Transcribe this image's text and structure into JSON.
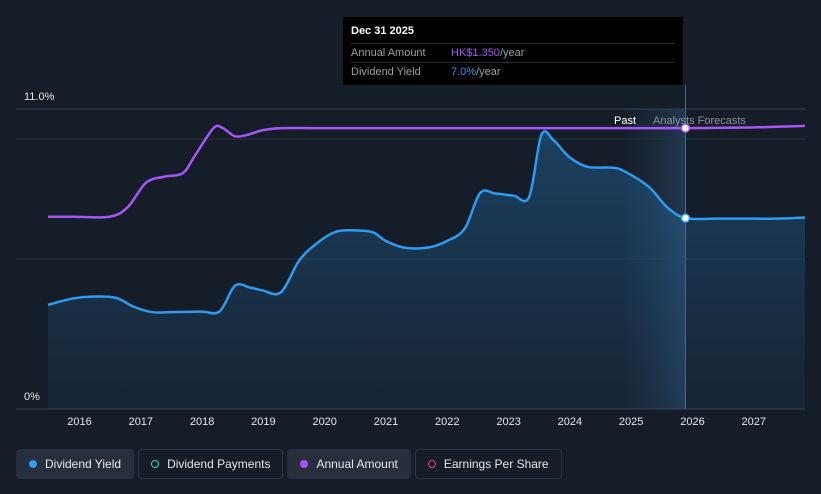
{
  "chart_data": {
    "type": "line",
    "y_axis": {
      "top_label": "11.0%",
      "bottom_label": "0%",
      "ylim": [
        0,
        11
      ]
    },
    "x_ticks": [
      "2016",
      "2017",
      "2018",
      "2019",
      "2020",
      "2021",
      "2022",
      "2023",
      "2024",
      "2025",
      "2026",
      "2027"
    ],
    "xlim": [
      2015.6,
      2027.95
    ],
    "regions": {
      "past_label": "Past",
      "forecast_label": "Analysts Forecasts",
      "divider_x": 2026.0
    },
    "series": [
      {
        "name": "Dividend Yield",
        "color": "#2d9bf0",
        "fill": true,
        "points": [
          [
            2015.6,
            3.82
          ],
          [
            2016.0,
            4.05
          ],
          [
            2016.3,
            4.12
          ],
          [
            2016.7,
            4.08
          ],
          [
            2017.0,
            3.75
          ],
          [
            2017.3,
            3.55
          ],
          [
            2017.6,
            3.55
          ],
          [
            2018.1,
            3.57
          ],
          [
            2018.4,
            3.58
          ],
          [
            2018.65,
            4.52
          ],
          [
            2018.9,
            4.45
          ],
          [
            2019.1,
            4.35
          ],
          [
            2019.4,
            4.28
          ],
          [
            2019.7,
            5.45
          ],
          [
            2020.0,
            6.1
          ],
          [
            2020.3,
            6.5
          ],
          [
            2020.6,
            6.55
          ],
          [
            2020.9,
            6.48
          ],
          [
            2021.1,
            6.18
          ],
          [
            2021.4,
            5.92
          ],
          [
            2021.8,
            5.92
          ],
          [
            2022.1,
            6.15
          ],
          [
            2022.4,
            6.62
          ],
          [
            2022.65,
            7.92
          ],
          [
            2022.9,
            7.9
          ],
          [
            2023.2,
            7.82
          ],
          [
            2023.45,
            7.78
          ],
          [
            2023.65,
            10.05
          ],
          [
            2023.85,
            9.85
          ],
          [
            2024.1,
            9.25
          ],
          [
            2024.4,
            8.88
          ],
          [
            2024.8,
            8.85
          ],
          [
            2025.0,
            8.72
          ],
          [
            2025.4,
            8.15
          ],
          [
            2025.7,
            7.4
          ],
          [
            2026.0,
            7.0
          ],
          [
            2026.5,
            6.98
          ],
          [
            2027.0,
            6.98
          ],
          [
            2027.5,
            6.98
          ],
          [
            2027.95,
            7.02
          ]
        ]
      },
      {
        "name": "Annual Amount",
        "color": "#a855f7",
        "fill": false,
        "points": [
          [
            2015.6,
            7.05
          ],
          [
            2016.0,
            7.05
          ],
          [
            2016.6,
            7.05
          ],
          [
            2016.9,
            7.4
          ],
          [
            2017.2,
            8.3
          ],
          [
            2017.5,
            8.52
          ],
          [
            2017.8,
            8.65
          ],
          [
            2018.0,
            9.3
          ],
          [
            2018.3,
            10.3
          ],
          [
            2018.45,
            10.3
          ],
          [
            2018.65,
            10.0
          ],
          [
            2018.85,
            10.05
          ],
          [
            2019.1,
            10.22
          ],
          [
            2019.4,
            10.3
          ],
          [
            2020.0,
            10.3
          ],
          [
            2021.0,
            10.3
          ],
          [
            2022.0,
            10.3
          ],
          [
            2023.0,
            10.3
          ],
          [
            2024.0,
            10.3
          ],
          [
            2025.0,
            10.3
          ],
          [
            2026.0,
            10.3
          ],
          [
            2027.0,
            10.32
          ],
          [
            2027.95,
            10.38
          ]
        ]
      }
    ],
    "highlight": {
      "x": 2026.0,
      "date_label": "Dec 31 2025",
      "rows": [
        {
          "key": "Annual Amount",
          "value": "HK$1.350",
          "unit": "/year",
          "color": "#a855f7"
        },
        {
          "key": "Dividend Yield",
          "value": "7.0%",
          "unit": "/year",
          "color": "#2d9bf0"
        }
      ]
    }
  },
  "legend": [
    {
      "label": "Dividend Yield",
      "icon": "solid-dot",
      "color": "#2d9bf0"
    },
    {
      "label": "Dividend Payments",
      "icon": "ring-dot",
      "color": "#3fd5c0"
    },
    {
      "label": "Annual Amount",
      "icon": "solid-dot",
      "color": "#a855f7"
    },
    {
      "label": "Earnings Per Share",
      "icon": "ring-dot",
      "color": "#d9468f"
    }
  ]
}
